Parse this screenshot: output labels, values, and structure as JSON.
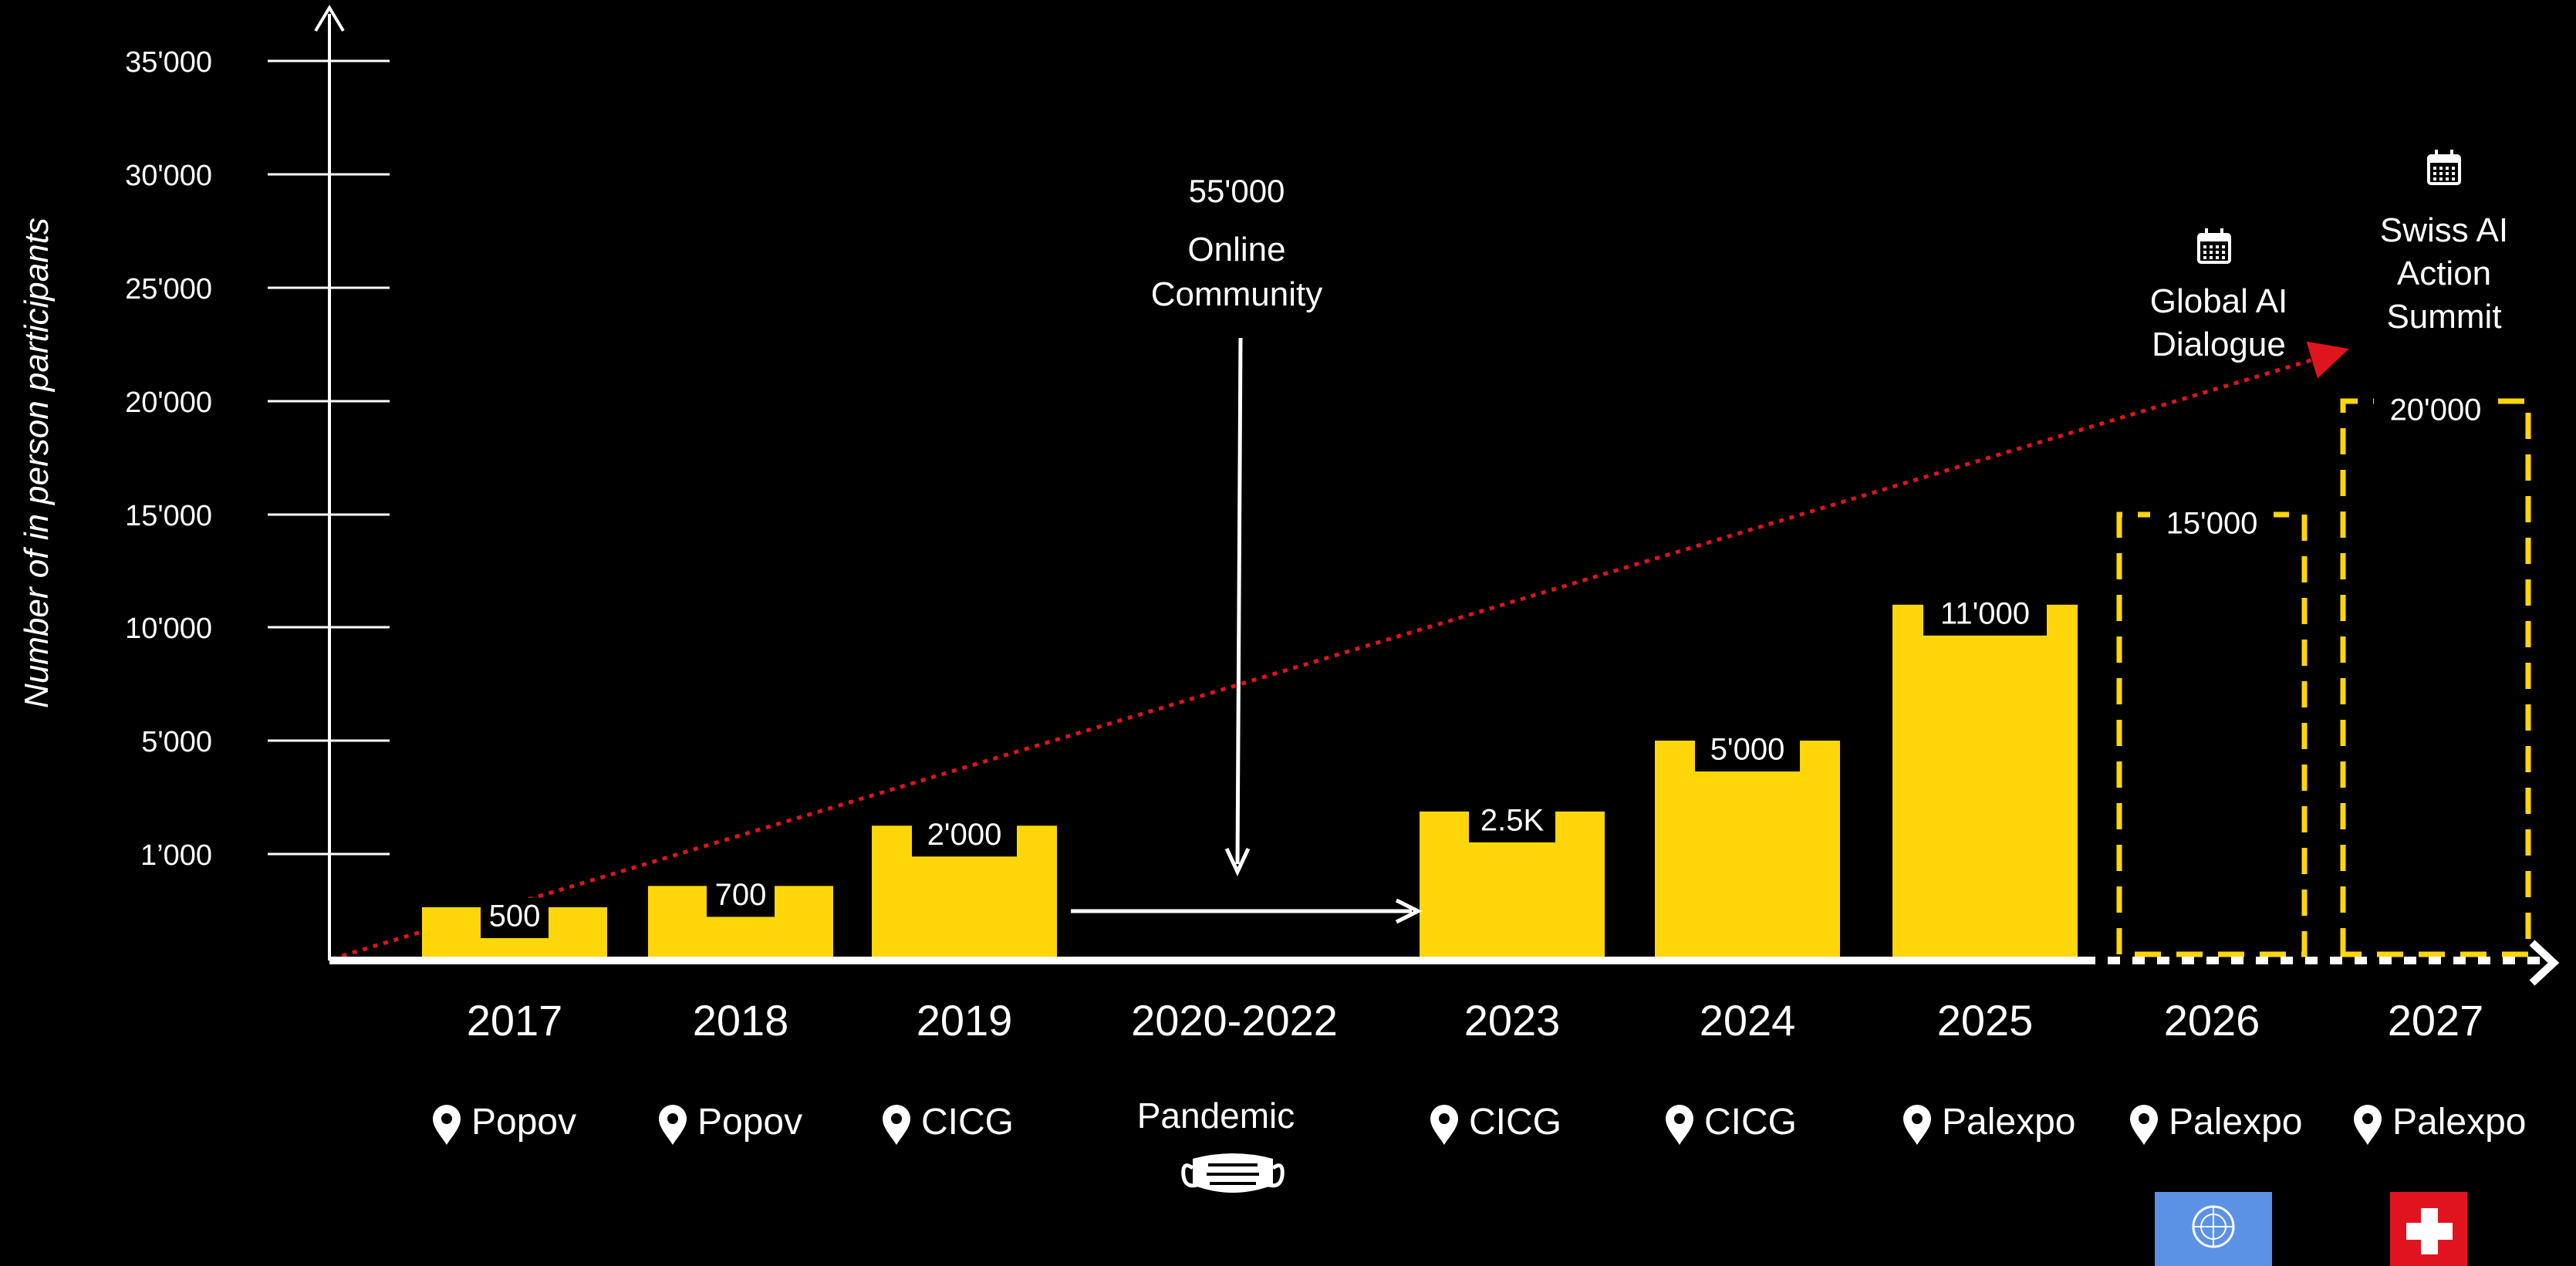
{
  "chart_data": {
    "type": "bar",
    "ylabel": "Number of in person participants",
    "y_ticks": [
      "1’000",
      "5'000",
      "10'000",
      "15'000",
      "20'000",
      "25'000",
      "30'000",
      "35'000"
    ],
    "categories": [
      "2017",
      "2018",
      "2019",
      "2020-2022",
      "2023",
      "2024",
      "2025",
      "2026",
      "2027"
    ],
    "values": [
      500,
      700,
      2000,
      null,
      2500,
      5000,
      11000,
      15000,
      20000
    ],
    "value_labels": [
      "500",
      "700",
      "2'000",
      "",
      "2.5K",
      "5'000",
      "11'000",
      "15'000",
      "20'000"
    ],
    "projected": [
      false,
      false,
      false,
      false,
      false,
      false,
      false,
      true,
      true
    ],
    "venues": [
      "Popov",
      "Popov",
      "CICG",
      "Pandemic",
      "CICG",
      "CICG",
      "Palexpo",
      "Palexpo",
      "Palexpo"
    ],
    "online_community": {
      "value": "55'000",
      "label": "Online Community"
    },
    "events": [
      {
        "year": "2026",
        "name": "Global AI Dialogue",
        "icon": "calendar-icon",
        "flag": "un-flag-icon"
      },
      {
        "year": "2027",
        "name": "Swiss AI Action Summit",
        "icon": "calendar-icon",
        "flag": "swiss-flag-icon"
      }
    ],
    "colors": {
      "bar": "#FFD60A",
      "trend": "#E0141E",
      "axis": "#FFFFFF",
      "background": "#000000",
      "un_blue": "#5B92E5",
      "swiss_red": "#E0141E"
    },
    "legend": "none",
    "grid": false
  }
}
